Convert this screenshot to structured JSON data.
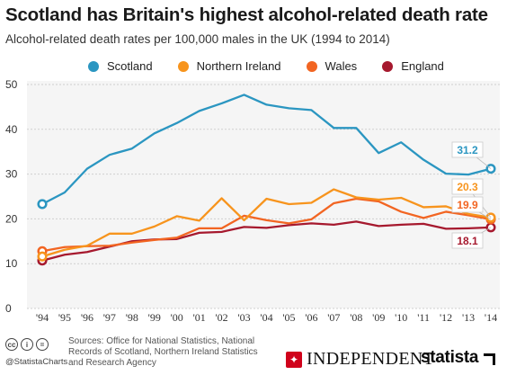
{
  "header": {
    "title": "Scotland has Britain's highest alcohol-related death rate",
    "subtitle": "Alcohol-related death rates per 100,000 males in the UK (1994 to 2014)"
  },
  "colors": {
    "scotland": "#2b96c1",
    "northern_ireland": "#f7941d",
    "wales": "#f26522",
    "england": "#a6192e",
    "grid": "#cfcfcf",
    "plot_bg": "#f5f5f5"
  },
  "chart_data": {
    "type": "line",
    "title": "Scotland has Britain's highest alcohol-related death rate",
    "subtitle": "Alcohol-related death rates per 100,000 males in the UK (1994 to 2014)",
    "categories": [
      "'94",
      "'95",
      "'96",
      "'97",
      "'98",
      "'99",
      "'00",
      "'01",
      "'02",
      "'03",
      "'04",
      "'05",
      "'06",
      "'07",
      "'08",
      "'09",
      "'10",
      "'11",
      "'12",
      "'13",
      "'14"
    ],
    "ylim": [
      0,
      50
    ],
    "yticks": [
      0,
      10,
      20,
      30,
      40,
      50
    ],
    "grid": true,
    "legend_position": "top",
    "series": [
      {
        "name": "Scotland",
        "color": "#2b96c1",
        "values": [
          23.3,
          25.9,
          31.2,
          34.3,
          35.7,
          39.1,
          41.4,
          44.1,
          45.8,
          47.7,
          45.5,
          44.7,
          44.3,
          40.3,
          40.3,
          34.7,
          37.1,
          33.2,
          30.1,
          29.9,
          31.2
        ],
        "end_label": "31.2"
      },
      {
        "name": "Northern Ireland",
        "color": "#f7941d",
        "values": [
          11.6,
          13.1,
          14.0,
          16.7,
          16.7,
          18.3,
          20.6,
          19.6,
          24.6,
          19.7,
          24.5,
          23.3,
          23.6,
          26.6,
          24.8,
          24.3,
          24.7,
          22.6,
          22.8,
          21.1,
          20.3
        ],
        "end_label": "20.3"
      },
      {
        "name": "Wales",
        "color": "#f26522",
        "values": [
          12.8,
          13.7,
          13.9,
          14.0,
          14.7,
          15.3,
          15.8,
          17.9,
          17.9,
          20.7,
          19.7,
          19.0,
          19.9,
          23.5,
          24.5,
          23.9,
          21.6,
          20.2,
          21.6,
          20.8,
          19.9
        ],
        "end_label": "19.9"
      },
      {
        "name": "England",
        "color": "#a6192e",
        "values": [
          10.7,
          12.0,
          12.6,
          13.8,
          15.0,
          15.4,
          15.5,
          16.9,
          17.1,
          18.2,
          18.0,
          18.6,
          19.0,
          18.7,
          19.4,
          18.4,
          18.7,
          18.9,
          17.8,
          17.9,
          18.1
        ],
        "end_label": "18.1"
      }
    ]
  },
  "footer": {
    "cc_icons": [
      "cc-icon",
      "i",
      "="
    ],
    "handle": "@StatistaCharts",
    "sources": "Sources: Office for National Statistics, National Records of Scotland, Northern Ireland Statistics and Research Agency",
    "independent": "INDEPENDENT",
    "statista": "statista"
  }
}
